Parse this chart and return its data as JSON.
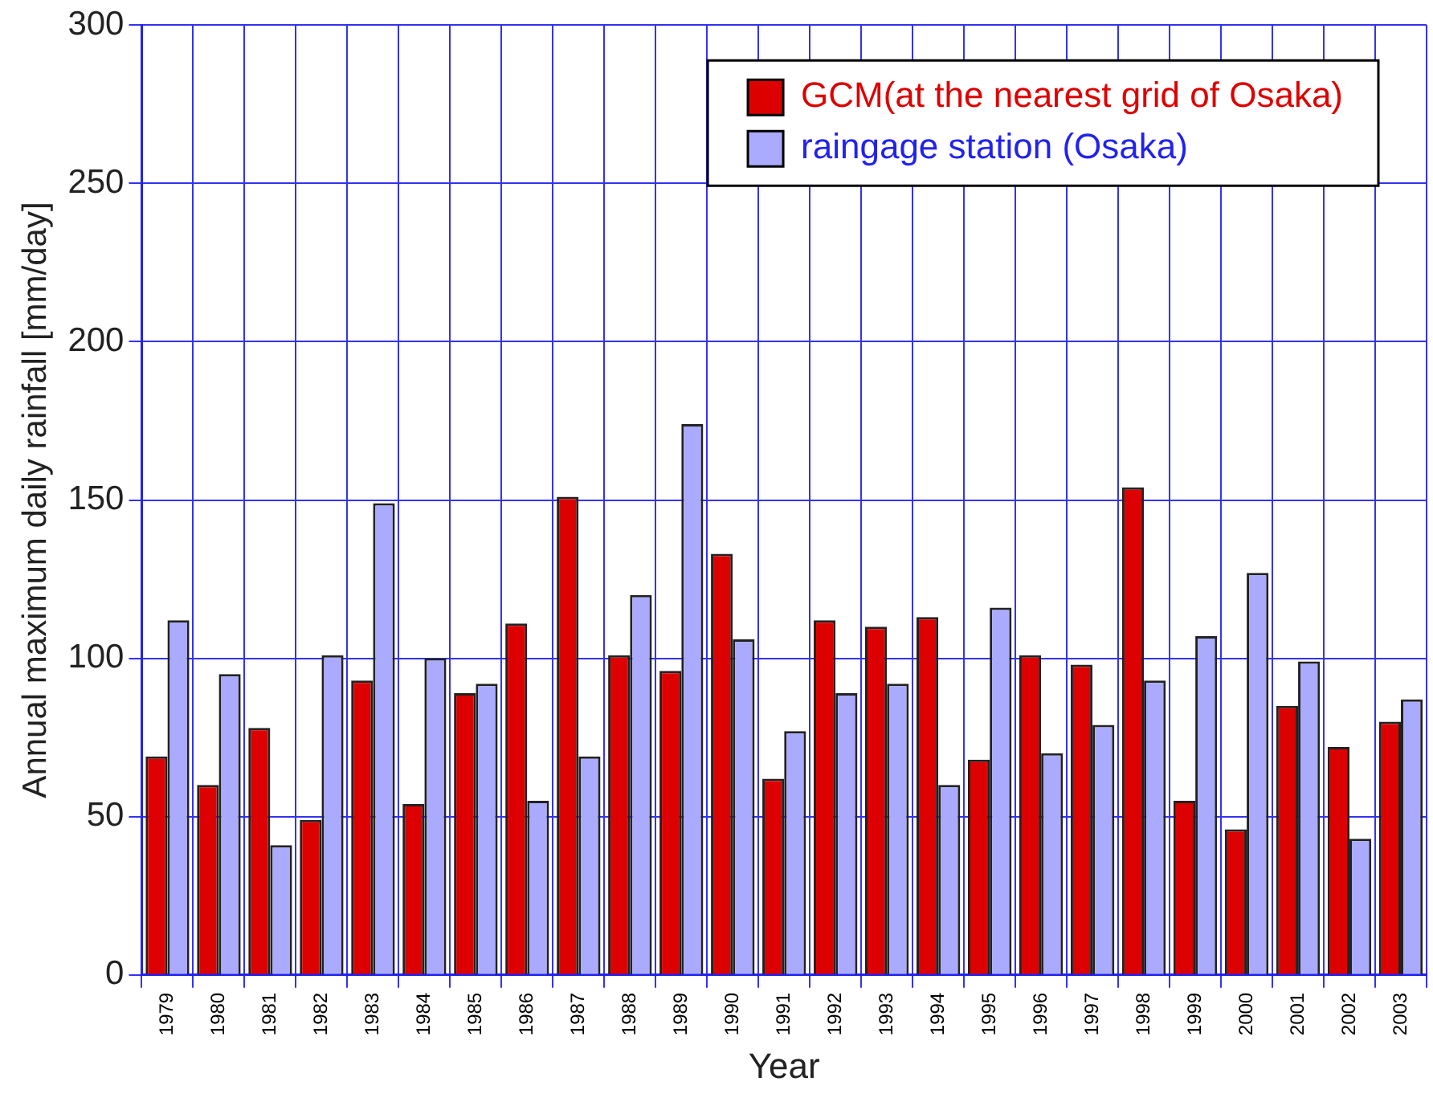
{
  "chart_data": {
    "type": "bar",
    "xlabel": "Year",
    "ylabel": "Annual maximum daily rainfall [mm/day]",
    "categories": [
      "1979",
      "1980",
      "1981",
      "1982",
      "1983",
      "1984",
      "1985",
      "1986",
      "1987",
      "1988",
      "1989",
      "1990",
      "1991",
      "1992",
      "1993",
      "1994",
      "1995",
      "1996",
      "1997",
      "1998",
      "1999",
      "2000",
      "2001",
      "2002",
      "2003"
    ],
    "series": [
      {
        "name": "GCM(at the nearest grid of Osaka)",
        "color": "#dd0000",
        "values": [
          69,
          60,
          78,
          49,
          93,
          54,
          89,
          111,
          151,
          101,
          96,
          133,
          62,
          112,
          110,
          113,
          68,
          101,
          98,
          154,
          55,
          46,
          85,
          72,
          80
        ]
      },
      {
        "name": "raingage station (Osaka)",
        "color": "#aaaaff",
        "values": [
          112,
          95,
          41,
          101,
          149,
          100,
          92,
          55,
          69,
          120,
          174,
          106,
          77,
          89,
          92,
          60,
          116,
          70,
          79,
          93,
          107,
          127,
          99,
          43,
          87
        ]
      }
    ],
    "ylim": [
      0,
      300
    ],
    "yticks": [
      0,
      50,
      100,
      150,
      200,
      250,
      300
    ],
    "grid": true,
    "legend": "top right"
  }
}
